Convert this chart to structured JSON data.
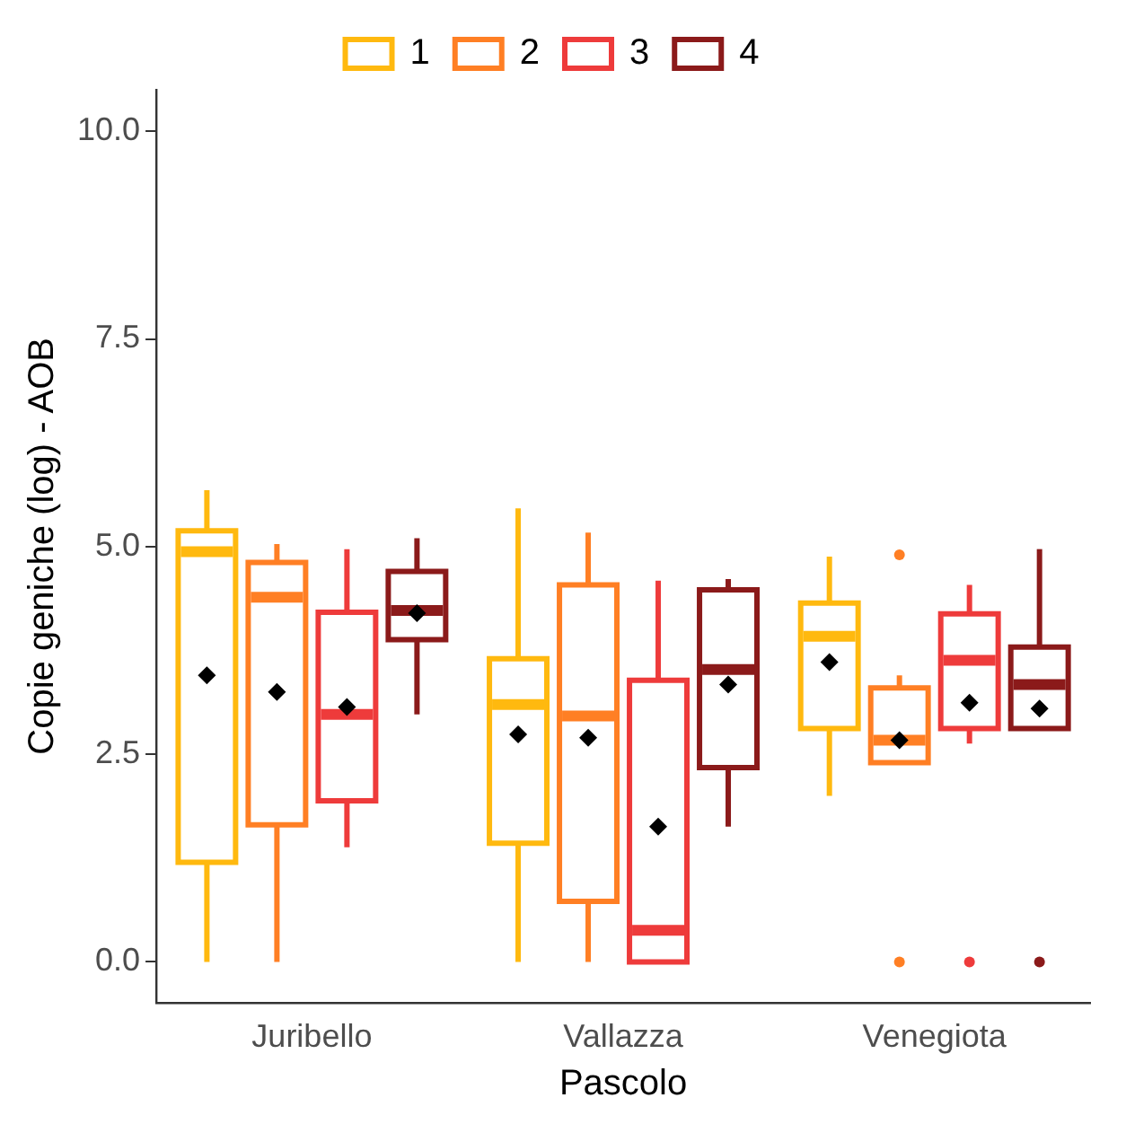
{
  "chart_data": {
    "type": "box",
    "xlabel": "Pascolo",
    "ylabel": "Copie geniche (log) - AOB",
    "categories": [
      "Juribello",
      "Vallazza",
      "Venegiota"
    ],
    "ylim": [
      -0.49,
      10.5
    ],
    "yticks": [
      {
        "value": 0,
        "label": "0.0"
      },
      {
        "value": 2.5,
        "label": "2.5"
      },
      {
        "value": 5,
        "label": "5.0"
      },
      {
        "value": 7.5,
        "label": "7.5"
      },
      {
        "value": 10,
        "label": "10.0"
      }
    ],
    "grid": false,
    "legend": "top",
    "series": [
      {
        "name": "1",
        "color": "#ffb90f",
        "boxes": [
          {
            "low": 0,
            "q1": 1.2,
            "median": 4.94,
            "q3": 5.19,
            "high": 5.68,
            "mean": 3.45
          },
          {
            "low": 0,
            "q1": 1.43,
            "median": 3.1,
            "q3": 3.65,
            "high": 5.46,
            "mean": 2.74
          },
          {
            "low": 2.0,
            "q1": 2.81,
            "median": 3.92,
            "q3": 4.32,
            "high": 4.88,
            "mean": 3.61
          }
        ]
      },
      {
        "name": "2",
        "color": "#ff7f24",
        "boxes": [
          {
            "low": 0,
            "q1": 1.65,
            "median": 4.39,
            "q3": 4.81,
            "high": 5.03,
            "mean": 3.25
          },
          {
            "low": 0,
            "q1": 0.73,
            "median": 2.96,
            "q3": 4.54,
            "high": 5.17,
            "mean": 2.7
          },
          {
            "low": 2.4,
            "q1": 2.4,
            "median": 2.67,
            "q3": 3.3,
            "high": 3.45,
            "mean": 2.67,
            "outliers": [
              4.9,
              0
            ]
          }
        ]
      },
      {
        "name": "3",
        "color": "#ee3b3b",
        "boxes": [
          {
            "low": 1.38,
            "q1": 1.94,
            "median": 2.98,
            "q3": 4.21,
            "high": 4.97,
            "mean": 3.07
          },
          {
            "low": 0,
            "q1": 0,
            "median": 0.38,
            "q3": 3.39,
            "high": 4.59,
            "mean": 1.63
          },
          {
            "low": 2.63,
            "q1": 2.81,
            "median": 3.63,
            "q3": 4.19,
            "high": 4.54,
            "mean": 3.12,
            "outliers": [
              0
            ]
          }
        ]
      },
      {
        "name": "4",
        "color": "#8b1a1a",
        "boxes": [
          {
            "low": 2.98,
            "q1": 3.88,
            "median": 4.23,
            "q3": 4.7,
            "high": 5.1,
            "mean": 4.2
          },
          {
            "low": 1.63,
            "q1": 2.34,
            "median": 3.52,
            "q3": 4.48,
            "high": 4.61,
            "mean": 3.34
          },
          {
            "low": 2.81,
            "q1": 2.81,
            "median": 3.34,
            "q3": 3.79,
            "high": 4.97,
            "mean": 3.05,
            "outliers": [
              0
            ]
          }
        ]
      }
    ]
  }
}
